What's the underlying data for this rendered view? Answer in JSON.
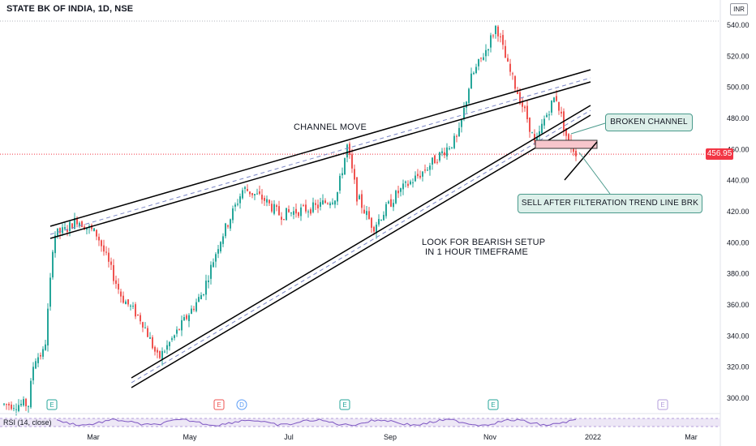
{
  "chart_data": {
    "type": "candlestick",
    "title": "STATE BK OF INDIA, 1D, NSE",
    "currency": "INR",
    "last_price": "456.95",
    "ylim": [
      290,
      550
    ],
    "y_ticks": [
      "540.00",
      "520.00",
      "500.00",
      "480.00",
      "460.00",
      "440.00",
      "420.00",
      "400.00",
      "380.00",
      "360.00",
      "340.00",
      "320.00",
      "300.00"
    ],
    "x_ticks": [
      "Mar",
      "May",
      "Jul",
      "Sep",
      "Nov",
      "2022",
      "Mar"
    ],
    "indicator": "RSI (14, close)",
    "event_markers": [
      "E",
      "E",
      "D",
      "E",
      "E",
      "E"
    ],
    "annotations": {
      "channel_move": "CHANNEL MOVE",
      "bearish_setup_line1": "LOOK FOR BEARISH SETUP",
      "bearish_setup_line2": "IN 1 HOUR TIMEFRAME",
      "broken_channel": "BROKEN CHANNEL",
      "sell_signal": "SELL AFTER FILTERATION TREND LINE BRK"
    },
    "price_path": [
      {
        "date": "Jan",
        "close": 296
      },
      {
        "date": "Feb start",
        "close": 355
      },
      {
        "date": "Feb",
        "close": 410
      },
      {
        "date": "Mar",
        "close": 415
      },
      {
        "date": "Apr",
        "close": 360
      },
      {
        "date": "Apr end",
        "close": 325
      },
      {
        "date": "May",
        "close": 355
      },
      {
        "date": "Jun",
        "close": 430
      },
      {
        "date": "Jul",
        "close": 420
      },
      {
        "date": "Aug",
        "close": 420
      },
      {
        "date": "Aug end",
        "close": 465
      },
      {
        "date": "Sep start",
        "close": 410
      },
      {
        "date": "Sep",
        "close": 440
      },
      {
        "date": "Oct",
        "close": 465
      },
      {
        "date": "Oct end",
        "close": 520
      },
      {
        "date": "Nov start",
        "close": 540
      },
      {
        "date": "Nov",
        "close": 505
      },
      {
        "date": "Dec",
        "close": 460
      },
      {
        "date": "Dec mid",
        "close": 490
      },
      {
        "date": "Dec end",
        "close": 457
      }
    ],
    "colors": {
      "up": "#26a69a",
      "down": "#ef5350",
      "line": "#000000",
      "mid": "#7a86c6",
      "rsi": "#7e57c2",
      "badge": "#f23645"
    }
  }
}
